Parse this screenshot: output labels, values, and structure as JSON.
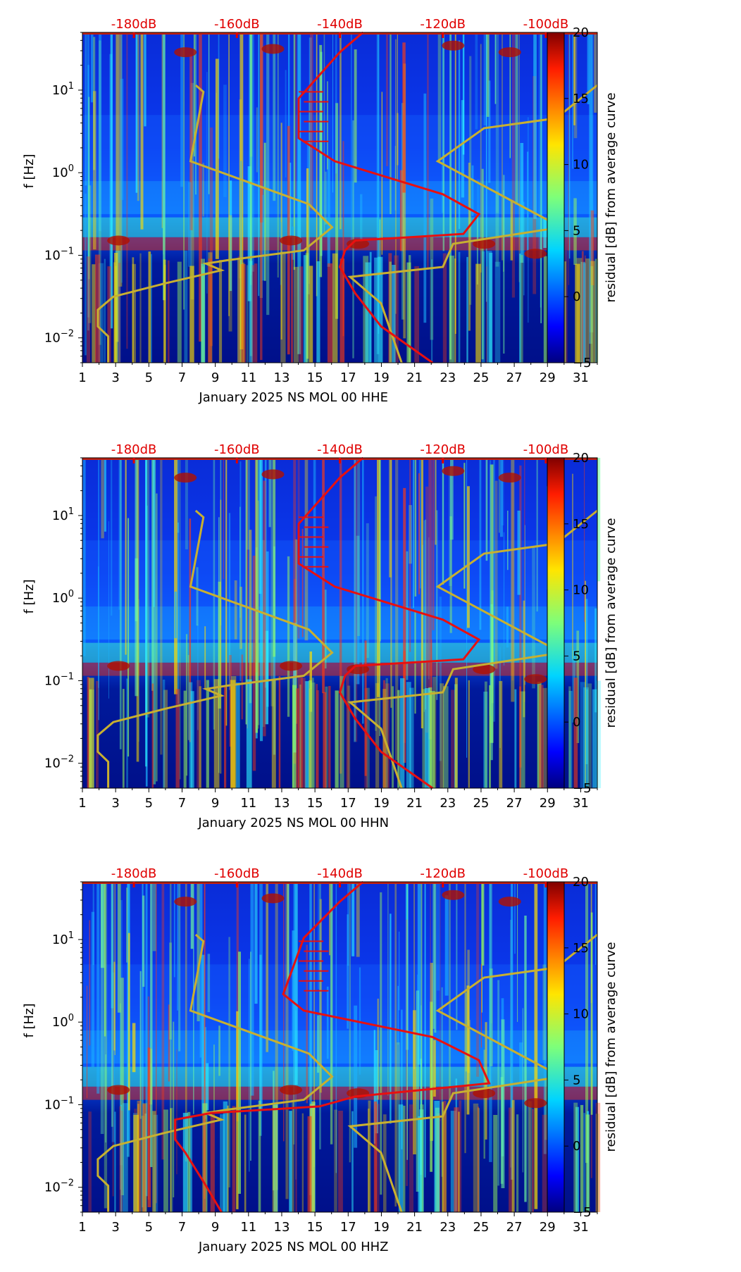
{
  "chart_data": [
    {
      "type": "heatmap",
      "xlabel": "January 2025 NS MOL 00 HHE",
      "ylabel": "f [Hz]",
      "x_ticks": [
        "1",
        "3",
        "5",
        "7",
        "9",
        "11",
        "13",
        "15",
        "17",
        "19",
        "21",
        "23",
        "25",
        "27",
        "29",
        "31"
      ],
      "xlim": [
        1,
        32
      ],
      "y_ticks": [
        {
          "base": "10",
          "exp": "1"
        },
        {
          "base": "10",
          "exp": "0"
        },
        {
          "base": "10",
          "exp": "−1"
        },
        {
          "base": "10",
          "exp": "−2"
        }
      ],
      "ylim_hz": [
        0.005,
        50
      ],
      "top_ticks": [
        "-180dB",
        "-160dB",
        "-140dB",
        "-120dB",
        "-100dB"
      ],
      "colorbar": {
        "label": "residual [dB] from average curve",
        "ticks": [
          "20",
          "15",
          "10",
          "5",
          "0",
          "−5"
        ],
        "range": [
          -5,
          20
        ]
      },
      "red_curve_note": "average PSD curve (dB on top axis)",
      "yellow_curve_note": "reference noise model curves"
    },
    {
      "type": "heatmap",
      "xlabel": "January 2025 NS MOL 00 HHN",
      "ylabel": "f [Hz]",
      "x_ticks": [
        "1",
        "3",
        "5",
        "7",
        "9",
        "11",
        "13",
        "15",
        "17",
        "19",
        "21",
        "23",
        "25",
        "27",
        "29",
        "31"
      ],
      "xlim": [
        1,
        32
      ],
      "y_ticks": [
        {
          "base": "10",
          "exp": "1"
        },
        {
          "base": "10",
          "exp": "0"
        },
        {
          "base": "10",
          "exp": "−1"
        },
        {
          "base": "10",
          "exp": "−2"
        }
      ],
      "ylim_hz": [
        0.005,
        50
      ],
      "top_ticks": [
        "-180dB",
        "-160dB",
        "-140dB",
        "-120dB",
        "-100dB"
      ],
      "colorbar": {
        "label": "residual [dB] from average curve",
        "ticks": [
          "20",
          "15",
          "10",
          "5",
          "0",
          "−5"
        ],
        "range": [
          -5,
          20
        ]
      },
      "red_curve_note": "average PSD curve (dB on top axis)",
      "yellow_curve_note": "reference noise model curves"
    },
    {
      "type": "heatmap",
      "xlabel": "January 2025 NS MOL 00 HHZ",
      "ylabel": "f [Hz]",
      "x_ticks": [
        "1",
        "3",
        "5",
        "7",
        "9",
        "11",
        "13",
        "15",
        "17",
        "19",
        "21",
        "23",
        "25",
        "27",
        "29",
        "31"
      ],
      "xlim": [
        1,
        32
      ],
      "y_ticks": [
        {
          "base": "10",
          "exp": "1"
        },
        {
          "base": "10",
          "exp": "0"
        },
        {
          "base": "10",
          "exp": "−1"
        },
        {
          "base": "10",
          "exp": "−2"
        }
      ],
      "ylim_hz": [
        0.005,
        50
      ],
      "top_ticks": [
        "-180dB",
        "-160dB",
        "-140dB",
        "-120dB",
        "-100dB"
      ],
      "colorbar": {
        "label": "residual [dB] from average curve",
        "ticks": [
          "20",
          "15",
          "10",
          "5",
          "0",
          "−5"
        ],
        "range": [
          -5,
          20
        ]
      },
      "red_curve_note": "average PSD curve (dB on top axis)",
      "yellow_curve_note": "reference noise model curves"
    }
  ],
  "colors": {
    "curve_red": "#e81010",
    "curve_yellow": "#c8b030",
    "db_text": "#e00000"
  }
}
